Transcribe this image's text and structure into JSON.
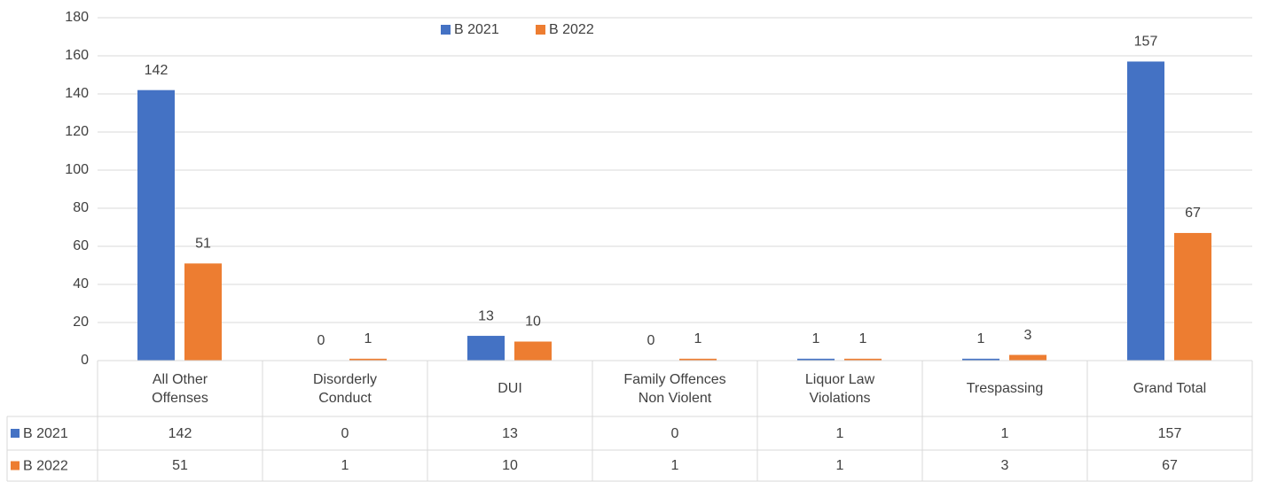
{
  "chart_data": {
    "type": "bar",
    "categories": [
      "All Other Offenses",
      "Disorderly Conduct",
      "DUI",
      "Family Offences Non Violent",
      "Liquor Law Violations",
      "Trespassing",
      "Grand Total"
    ],
    "series": [
      {
        "name": "B 2021",
        "color": "#4472c4",
        "values": [
          142,
          0,
          13,
          0,
          1,
          1,
          157
        ]
      },
      {
        "name": "B 2022",
        "color": "#ed7d31",
        "values": [
          51,
          1,
          10,
          1,
          1,
          3,
          67
        ]
      }
    ],
    "ylim": [
      0,
      180
    ],
    "yticks": [
      0,
      20,
      40,
      60,
      80,
      100,
      120,
      140,
      160,
      180
    ],
    "grid": true,
    "legend": "top",
    "data_table": true
  }
}
